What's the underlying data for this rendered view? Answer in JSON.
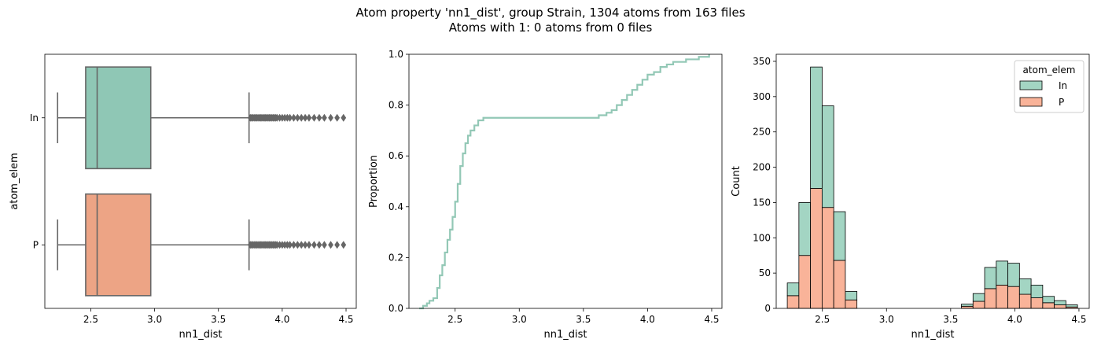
{
  "figure": {
    "title_line1": "Atom property 'nn1_dist', group Strain, 1304 atoms from 163 files",
    "title_line2": "Atoms with 1: 0 atoms from 0 files"
  },
  "colors": {
    "In": "#8fc7b5",
    "P": "#eda485",
    "In_hist": "#a3d5c3",
    "P_hist": "#f9b399",
    "box_line": "#666666",
    "ecdf": "#93c8b6"
  },
  "chart_data": [
    {
      "type": "box",
      "xlabel": "nn1_dist",
      "ylabel": "atom_elem",
      "xlim": [
        2.14,
        4.58
      ],
      "xticks": [
        "2.5",
        "3.0",
        "3.5",
        "4.0",
        "4.5"
      ],
      "categories": [
        "In",
        "P"
      ],
      "boxes": [
        {
          "name": "In",
          "whisker_low": 2.24,
          "q1": 2.46,
          "median": 2.55,
          "q3": 2.97,
          "whisker_high": 3.74,
          "outliers": [
            3.75,
            3.76,
            3.77,
            3.78,
            3.79,
            3.8,
            3.81,
            3.82,
            3.83,
            3.84,
            3.85,
            3.86,
            3.87,
            3.88,
            3.89,
            3.9,
            3.91,
            3.92,
            3.93,
            3.94,
            3.95,
            3.96,
            3.98,
            4.0,
            4.02,
            4.04,
            4.06,
            4.09,
            4.12,
            4.15,
            4.18,
            4.21,
            4.25,
            4.29,
            4.33,
            4.38,
            4.43,
            4.48
          ]
        },
        {
          "name": "P",
          "whisker_low": 2.24,
          "q1": 2.46,
          "median": 2.55,
          "q3": 2.97,
          "whisker_high": 3.74,
          "outliers": [
            3.75,
            3.76,
            3.77,
            3.78,
            3.79,
            3.8,
            3.81,
            3.82,
            3.83,
            3.84,
            3.85,
            3.86,
            3.87,
            3.88,
            3.89,
            3.9,
            3.91,
            3.92,
            3.93,
            3.94,
            3.95,
            3.96,
            3.98,
            4.0,
            4.02,
            4.04,
            4.06,
            4.09,
            4.12,
            4.15,
            4.18,
            4.21,
            4.25,
            4.29,
            4.33,
            4.38,
            4.43,
            4.48
          ]
        }
      ]
    },
    {
      "type": "line",
      "ylabel": "Proportion",
      "xlabel": "nn1_dist",
      "xlim": [
        2.14,
        4.58
      ],
      "ylim": [
        0.0,
        1.0
      ],
      "xticks": [
        "2.5",
        "3.0",
        "3.5",
        "4.0",
        "4.5"
      ],
      "yticks": [
        "0.0",
        "0.2",
        "0.4",
        "0.6",
        "0.8",
        "1.0"
      ],
      "x": [
        2.22,
        2.25,
        2.28,
        2.3,
        2.33,
        2.36,
        2.38,
        2.4,
        2.42,
        2.44,
        2.46,
        2.48,
        2.5,
        2.52,
        2.54,
        2.56,
        2.58,
        2.6,
        2.62,
        2.65,
        2.68,
        2.72,
        2.76,
        2.8,
        3.0,
        3.3,
        3.55,
        3.62,
        3.68,
        3.72,
        3.76,
        3.8,
        3.84,
        3.88,
        3.92,
        3.96,
        4.0,
        4.05,
        4.1,
        4.15,
        4.2,
        4.3,
        4.4,
        4.48
      ],
      "y": [
        0.0,
        0.01,
        0.02,
        0.03,
        0.04,
        0.08,
        0.13,
        0.17,
        0.22,
        0.27,
        0.31,
        0.36,
        0.42,
        0.49,
        0.56,
        0.61,
        0.65,
        0.68,
        0.7,
        0.72,
        0.74,
        0.75,
        0.75,
        0.75,
        0.75,
        0.75,
        0.75,
        0.76,
        0.77,
        0.78,
        0.8,
        0.82,
        0.84,
        0.86,
        0.88,
        0.9,
        0.92,
        0.93,
        0.95,
        0.96,
        0.97,
        0.98,
        0.99,
        1.0
      ]
    },
    {
      "type": "bar",
      "stacked": true,
      "ylabel": "Count",
      "xlabel": "nn1_dist",
      "xlim": [
        2.14,
        4.58
      ],
      "ylim": [
        0,
        360
      ],
      "xticks": [
        "2.5",
        "3.0",
        "3.5",
        "4.0",
        "4.5"
      ],
      "yticks": [
        "0",
        "50",
        "100",
        "150",
        "200",
        "250",
        "300",
        "350"
      ],
      "bin_width": 0.0905,
      "bin_starts": [
        2.2264,
        2.3169,
        2.4074,
        2.4979,
        2.5884,
        2.6789,
        2.7694,
        2.8599,
        2.9504,
        3.0409,
        3.1314,
        3.2219,
        3.3124,
        3.4029,
        3.4934,
        3.5839,
        3.6744,
        3.7649,
        3.8554,
        3.9459,
        4.0364,
        4.1269,
        4.2174,
        4.3079,
        4.3984
      ],
      "legend": {
        "title": "atom_elem",
        "placement": "upper right"
      },
      "series": [
        {
          "name": "P",
          "values": [
            18,
            75,
            170,
            143,
            68,
            12,
            0,
            0,
            0,
            0,
            0,
            0,
            0,
            0,
            0,
            3,
            10,
            28,
            33,
            31,
            20,
            15,
            8,
            5,
            2
          ]
        },
        {
          "name": "In",
          "values": [
            18,
            75,
            172,
            144,
            69,
            12,
            0,
            0,
            0,
            0,
            0,
            0,
            0,
            0,
            0,
            3,
            11,
            30,
            34,
            33,
            22,
            18,
            9,
            6,
            3
          ]
        }
      ]
    }
  ]
}
